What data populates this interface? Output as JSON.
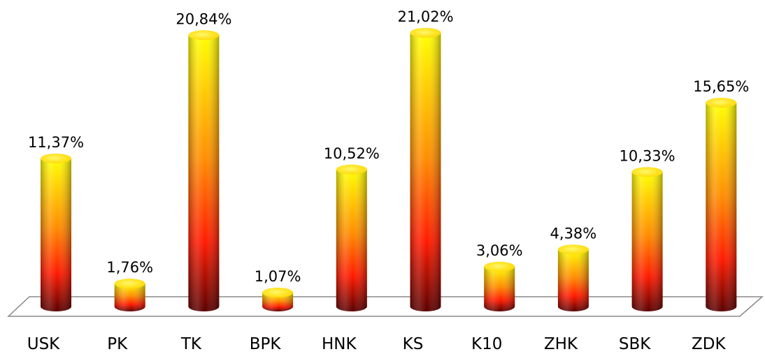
{
  "chart_data": {
    "type": "bar",
    "style": "3d-cylinder",
    "categories": [
      "USK",
      "PK",
      "TK",
      "BPK",
      "HNK",
      "KS",
      "K10",
      "ZHK",
      "SBK",
      "ZDK"
    ],
    "values": [
      11.37,
      1.76,
      20.84,
      1.07,
      10.52,
      21.02,
      3.06,
      4.38,
      10.33,
      15.65
    ],
    "data_labels": [
      "11,37%",
      "1,76%",
      "20,84%",
      "1,07%",
      "10,52%",
      "21,02%",
      "3,06%",
      "4,38%",
      "10,33%",
      "15,65%"
    ],
    "title": "",
    "xlabel": "",
    "ylabel": "",
    "ylim": [
      0,
      22
    ],
    "grid": false,
    "legend": "none",
    "colors": {
      "top": "#ffff00",
      "middle": "#ff8c00",
      "lower": "#ff1a00",
      "bottom": "#5a0000",
      "cap": "#ffee00",
      "floor_stroke": "#888888"
    }
  }
}
